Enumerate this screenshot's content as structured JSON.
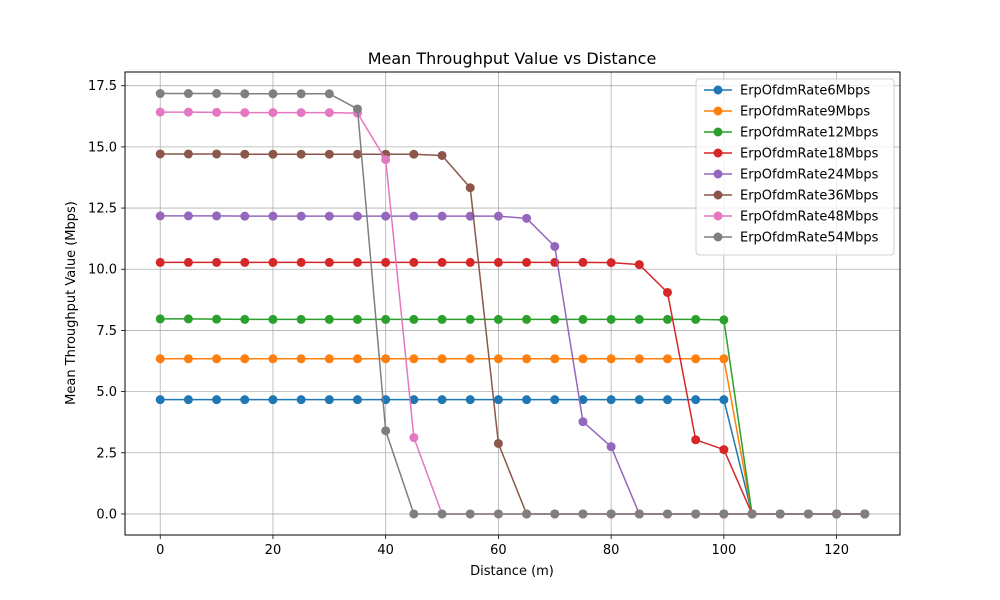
{
  "chart_data": {
    "type": "line",
    "title": "Mean Throughput Value vs Distance",
    "xlabel": "Distance (m)",
    "ylabel": "Mean Throughput Value (Mbps)",
    "xlim": [
      -6.25,
      131.25
    ],
    "ylim": [
      -0.86,
      18.06
    ],
    "xticks": [
      0,
      20,
      40,
      60,
      80,
      100,
      120
    ],
    "xtick_labels": [
      "0",
      "20",
      "40",
      "60",
      "80",
      "100",
      "120"
    ],
    "yticks": [
      0,
      2.5,
      5,
      7.5,
      10,
      12.5,
      15,
      17.5
    ],
    "ytick_labels": [
      "0.0",
      "2.5",
      "5.0",
      "7.5",
      "10.0",
      "12.5",
      "15.0",
      "17.5"
    ],
    "grid": true,
    "legend_position": "top-right",
    "x": [
      0,
      5,
      10,
      15,
      20,
      25,
      30,
      35,
      40,
      45,
      50,
      55,
      60,
      65,
      70,
      75,
      80,
      85,
      90,
      95,
      100,
      105,
      110,
      115,
      120,
      125
    ],
    "series": [
      {
        "name": "ErpOfdmRate6Mbps",
        "color": "#1f77b4",
        "values": [
          4.67,
          4.67,
          4.67,
          4.67,
          4.67,
          4.67,
          4.67,
          4.67,
          4.67,
          4.67,
          4.67,
          4.67,
          4.67,
          4.67,
          4.67,
          4.67,
          4.67,
          4.67,
          4.67,
          4.67,
          4.67,
          0,
          0,
          0,
          0,
          0
        ]
      },
      {
        "name": "ErpOfdmRate9Mbps",
        "color": "#ff7f0e",
        "values": [
          6.34,
          6.34,
          6.34,
          6.34,
          6.34,
          6.34,
          6.34,
          6.34,
          6.34,
          6.34,
          6.34,
          6.34,
          6.34,
          6.34,
          6.34,
          6.34,
          6.34,
          6.34,
          6.34,
          6.34,
          6.34,
          0,
          0,
          0,
          0,
          0
        ]
      },
      {
        "name": "ErpOfdmRate12Mbps",
        "color": "#2ca02c",
        "values": [
          7.97,
          7.97,
          7.96,
          7.95,
          7.95,
          7.95,
          7.95,
          7.95,
          7.95,
          7.95,
          7.95,
          7.95,
          7.95,
          7.95,
          7.95,
          7.95,
          7.95,
          7.95,
          7.95,
          7.95,
          7.93,
          0,
          0,
          0,
          0,
          0
        ]
      },
      {
        "name": "ErpOfdmRate18Mbps",
        "color": "#d62728",
        "values": [
          10.28,
          10.28,
          10.28,
          10.28,
          10.28,
          10.28,
          10.28,
          10.28,
          10.28,
          10.28,
          10.28,
          10.28,
          10.28,
          10.28,
          10.28,
          10.28,
          10.27,
          10.19,
          9.05,
          3.03,
          2.63,
          0,
          0,
          0,
          0,
          0
        ]
      },
      {
        "name": "ErpOfdmRate24Mbps",
        "color": "#9467bd",
        "values": [
          12.18,
          12.18,
          12.18,
          12.17,
          12.17,
          12.17,
          12.17,
          12.17,
          12.17,
          12.17,
          12.17,
          12.17,
          12.17,
          12.08,
          10.93,
          3.77,
          2.75,
          0,
          0,
          0,
          0,
          0,
          0,
          0,
          0,
          0
        ]
      },
      {
        "name": "ErpOfdmRate36Mbps",
        "color": "#8c564b",
        "values": [
          14.71,
          14.71,
          14.71,
          14.7,
          14.7,
          14.7,
          14.7,
          14.7,
          14.7,
          14.7,
          14.65,
          13.33,
          2.88,
          0,
          0,
          0,
          0,
          0,
          0,
          0,
          0,
          0,
          0,
          0,
          0,
          0
        ]
      },
      {
        "name": "ErpOfdmRate48Mbps",
        "color": "#e377c2",
        "values": [
          16.42,
          16.42,
          16.41,
          16.4,
          16.4,
          16.4,
          16.4,
          16.38,
          14.48,
          3.12,
          0,
          0,
          0,
          0,
          0,
          0,
          0,
          0,
          0,
          0,
          0,
          0,
          0,
          0,
          0,
          0
        ]
      },
      {
        "name": "ErpOfdmRate54Mbps",
        "color": "#7f7f7f",
        "values": [
          17.18,
          17.18,
          17.18,
          17.17,
          17.17,
          17.17,
          17.17,
          16.55,
          3.4,
          0,
          0,
          0,
          0,
          0,
          0,
          0,
          0,
          0,
          0,
          0,
          0,
          0,
          0,
          0,
          0,
          0
        ]
      }
    ]
  }
}
